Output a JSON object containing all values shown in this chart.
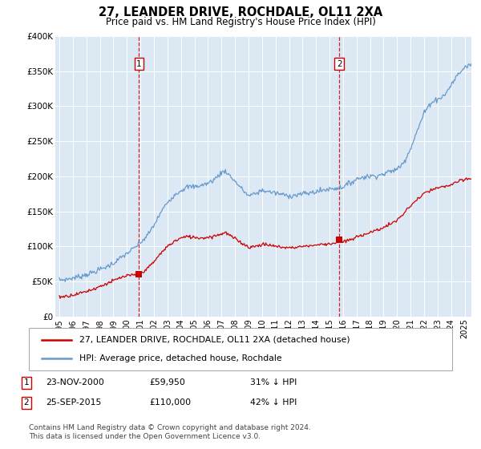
{
  "title": "27, LEANDER DRIVE, ROCHDALE, OL11 2XA",
  "subtitle": "Price paid vs. HM Land Registry's House Price Index (HPI)",
  "ylim": [
    0,
    400000
  ],
  "xlim_start": 1994.7,
  "xlim_end": 2025.5,
  "plot_bg_color": "#dce9f5",
  "grid_color": "#ffffff",
  "red_line_color": "#cc0000",
  "blue_line_color": "#6699cc",
  "vline_color": "#cc0000",
  "transaction1_x": 2000.9,
  "transaction1_y": 59950,
  "transaction2_x": 2015.73,
  "transaction2_y": 110000,
  "legend_label_red": "27, LEANDER DRIVE, ROCHDALE, OL11 2XA (detached house)",
  "legend_label_blue": "HPI: Average price, detached house, Rochdale",
  "table_row1": [
    "1",
    "23-NOV-2000",
    "£59,950",
    "31% ↓ HPI"
  ],
  "table_row2": [
    "2",
    "25-SEP-2015",
    "£110,000",
    "42% ↓ HPI"
  ],
  "footer": "Contains HM Land Registry data © Crown copyright and database right 2024.\nThis data is licensed under the Open Government Licence v3.0.",
  "hpi_pts": [
    [
      1995.0,
      52000
    ],
    [
      1995.5,
      53000
    ],
    [
      1996.0,
      55000
    ],
    [
      1996.5,
      57000
    ],
    [
      1997.0,
      60000
    ],
    [
      1997.5,
      63000
    ],
    [
      1998.0,
      67000
    ],
    [
      1998.5,
      71000
    ],
    [
      1999.0,
      76000
    ],
    [
      1999.5,
      83000
    ],
    [
      2000.0,
      90000
    ],
    [
      2000.5,
      97000
    ],
    [
      2001.0,
      105000
    ],
    [
      2001.5,
      115000
    ],
    [
      2002.0,
      130000
    ],
    [
      2002.5,
      148000
    ],
    [
      2003.0,
      163000
    ],
    [
      2003.5,
      173000
    ],
    [
      2004.0,
      180000
    ],
    [
      2004.5,
      185000
    ],
    [
      2005.0,
      185000
    ],
    [
      2005.5,
      187000
    ],
    [
      2006.0,
      190000
    ],
    [
      2006.5,
      196000
    ],
    [
      2007.0,
      205000
    ],
    [
      2007.3,
      208000
    ],
    [
      2007.5,
      203000
    ],
    [
      2008.0,
      193000
    ],
    [
      2008.5,
      182000
    ],
    [
      2009.0,
      172000
    ],
    [
      2009.5,
      175000
    ],
    [
      2010.0,
      180000
    ],
    [
      2010.5,
      178000
    ],
    [
      2011.0,
      176000
    ],
    [
      2011.5,
      174000
    ],
    [
      2012.0,
      172000
    ],
    [
      2012.5,
      173000
    ],
    [
      2013.0,
      175000
    ],
    [
      2013.5,
      176000
    ],
    [
      2014.0,
      178000
    ],
    [
      2014.5,
      180000
    ],
    [
      2015.0,
      182000
    ],
    [
      2015.5,
      183000
    ],
    [
      2016.0,
      185000
    ],
    [
      2016.5,
      190000
    ],
    [
      2017.0,
      196000
    ],
    [
      2017.5,
      199000
    ],
    [
      2018.0,
      200000
    ],
    [
      2018.5,
      201000
    ],
    [
      2019.0,
      203000
    ],
    [
      2019.5,
      207000
    ],
    [
      2020.0,
      210000
    ],
    [
      2020.5,
      220000
    ],
    [
      2021.0,
      240000
    ],
    [
      2021.5,
      265000
    ],
    [
      2022.0,
      290000
    ],
    [
      2022.5,
      305000
    ],
    [
      2023.0,
      310000
    ],
    [
      2023.5,
      315000
    ],
    [
      2024.0,
      330000
    ],
    [
      2024.5,
      345000
    ],
    [
      2025.0,
      355000
    ],
    [
      2025.5,
      360000
    ]
  ],
  "red_pts": [
    [
      1995.0,
      28000
    ],
    [
      1995.5,
      29000
    ],
    [
      1996.0,
      31000
    ],
    [
      1996.5,
      33000
    ],
    [
      1997.0,
      36000
    ],
    [
      1997.5,
      39000
    ],
    [
      1998.0,
      43000
    ],
    [
      1998.5,
      47000
    ],
    [
      1999.0,
      51000
    ],
    [
      1999.5,
      55000
    ],
    [
      2000.0,
      58000
    ],
    [
      2000.5,
      59000
    ],
    [
      2000.9,
      59950
    ],
    [
      2001.0,
      62000
    ],
    [
      2001.5,
      68000
    ],
    [
      2002.0,
      78000
    ],
    [
      2002.5,
      90000
    ],
    [
      2003.0,
      100000
    ],
    [
      2003.5,
      107000
    ],
    [
      2004.0,
      112000
    ],
    [
      2004.5,
      114000
    ],
    [
      2005.0,
      113000
    ],
    [
      2005.5,
      112000
    ],
    [
      2006.0,
      113000
    ],
    [
      2006.5,
      115000
    ],
    [
      2007.0,
      118000
    ],
    [
      2007.3,
      120000
    ],
    [
      2007.5,
      117000
    ],
    [
      2008.0,
      111000
    ],
    [
      2008.5,
      105000
    ],
    [
      2009.0,
      99000
    ],
    [
      2009.5,
      100000
    ],
    [
      2010.0,
      103000
    ],
    [
      2010.5,
      102000
    ],
    [
      2011.0,
      100000
    ],
    [
      2011.5,
      99000
    ],
    [
      2012.0,
      98000
    ],
    [
      2012.5,
      99000
    ],
    [
      2013.0,
      100000
    ],
    [
      2013.5,
      101000
    ],
    [
      2014.0,
      102000
    ],
    [
      2014.5,
      103000
    ],
    [
      2015.0,
      104000
    ],
    [
      2015.5,
      105000
    ],
    [
      2015.73,
      110000
    ],
    [
      2016.0,
      106000
    ],
    [
      2016.5,
      109000
    ],
    [
      2017.0,
      113000
    ],
    [
      2017.5,
      117000
    ],
    [
      2018.0,
      120000
    ],
    [
      2018.5,
      123000
    ],
    [
      2019.0,
      127000
    ],
    [
      2019.5,
      132000
    ],
    [
      2020.0,
      137000
    ],
    [
      2020.5,
      147000
    ],
    [
      2021.0,
      158000
    ],
    [
      2021.5,
      167000
    ],
    [
      2022.0,
      175000
    ],
    [
      2022.5,
      180000
    ],
    [
      2023.0,
      183000
    ],
    [
      2023.5,
      185000
    ],
    [
      2024.0,
      188000
    ],
    [
      2024.5,
      192000
    ],
    [
      2025.0,
      195000
    ],
    [
      2025.5,
      197000
    ]
  ]
}
